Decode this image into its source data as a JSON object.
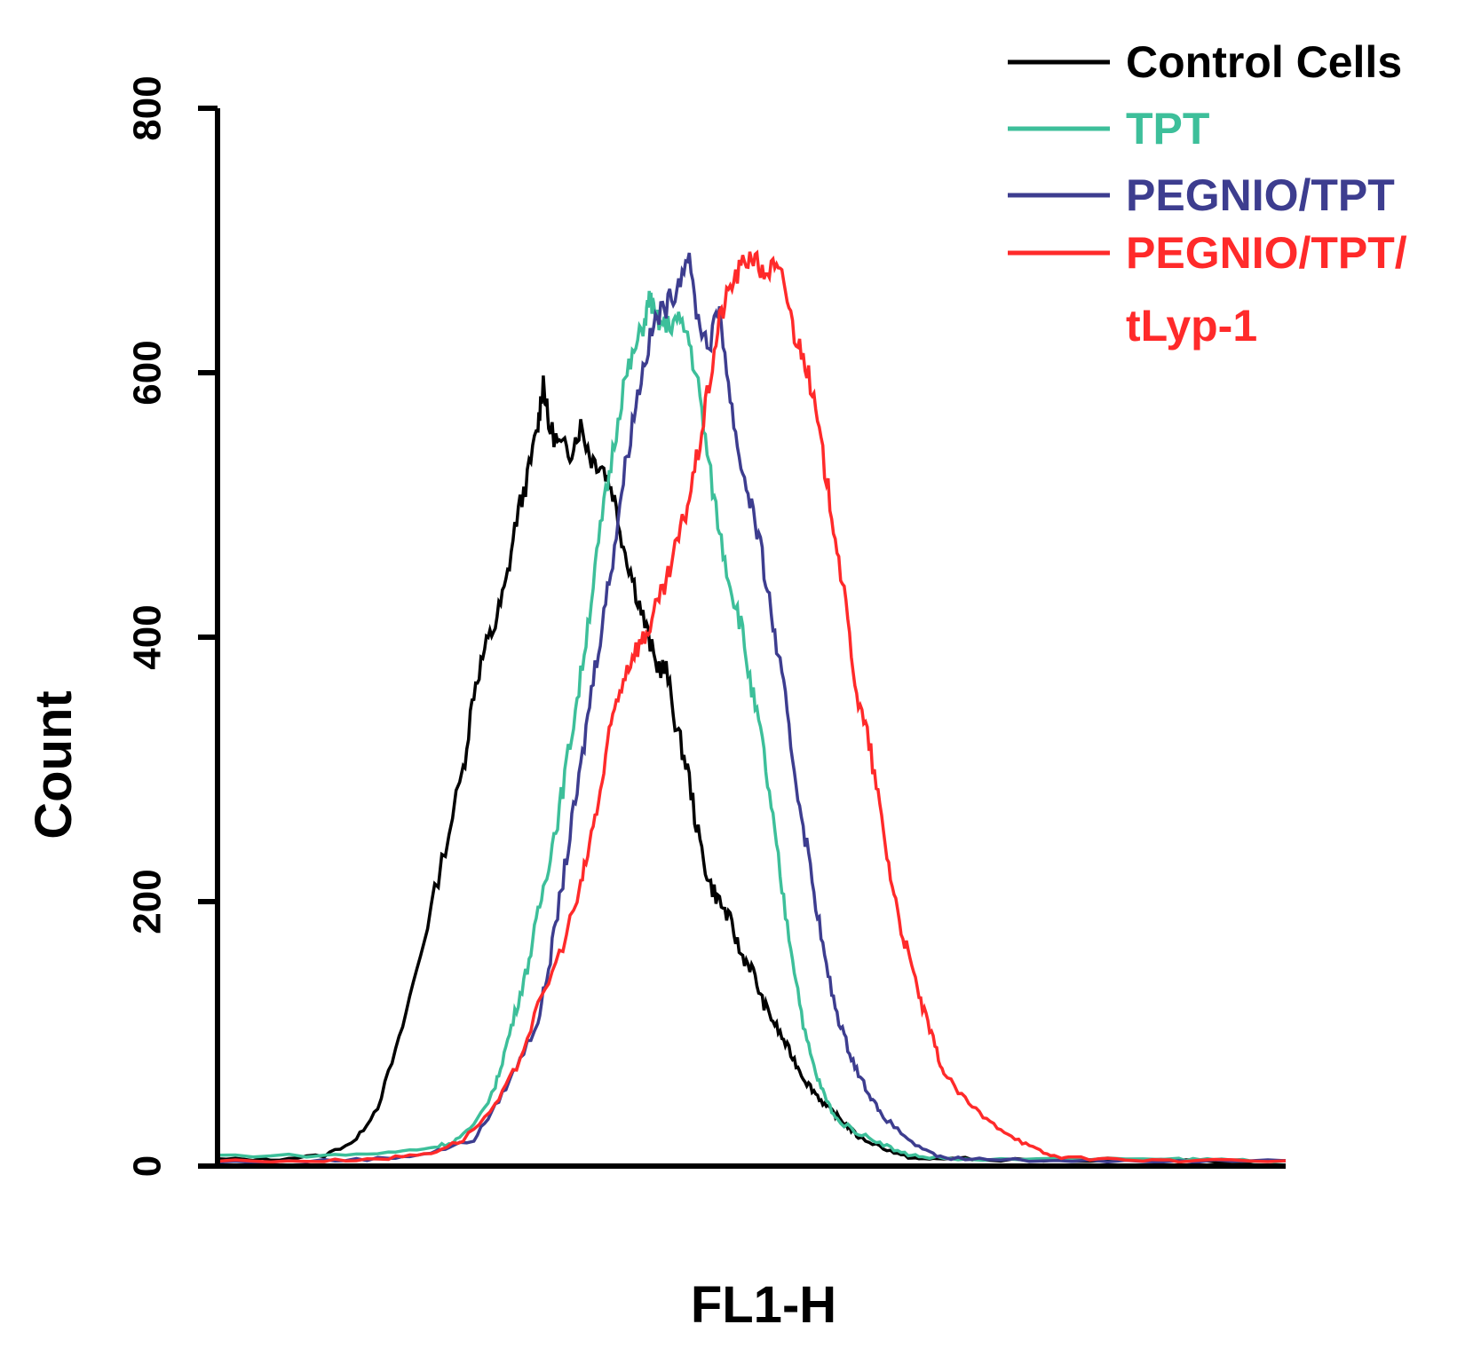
{
  "chart_data": {
    "type": "line",
    "title": "",
    "xlabel": "FL1-H",
    "ylabel": "Count",
    "xlim": [
      0,
      100
    ],
    "ylim": [
      0,
      800
    ],
    "yticks": [
      0,
      200,
      400,
      600,
      800
    ],
    "grid": false,
    "legend_position": "top-right",
    "series": [
      {
        "name": "Control Cells",
        "color": "#000000",
        "points": [
          [
            0,
            5
          ],
          [
            5,
            5
          ],
          [
            10,
            8
          ],
          [
            13,
            20
          ],
          [
            15,
            45
          ],
          [
            17,
            95
          ],
          [
            19,
            160
          ],
          [
            21,
            230
          ],
          [
            23,
            300
          ],
          [
            24,
            360
          ],
          [
            25,
            390
          ],
          [
            26,
            410
          ],
          [
            27,
            440
          ],
          [
            28,
            490
          ],
          [
            29,
            520
          ],
          [
            30,
            560
          ],
          [
            30.5,
            595
          ],
          [
            31,
            560
          ],
          [
            32,
            545
          ],
          [
            33,
            540
          ],
          [
            34,
            560
          ],
          [
            35,
            535
          ],
          [
            36,
            530
          ],
          [
            37,
            510
          ],
          [
            38,
            470
          ],
          [
            39,
            440
          ],
          [
            40,
            410
          ],
          [
            41,
            380
          ],
          [
            42,
            375
          ],
          [
            43,
            330
          ],
          [
            44,
            300
          ],
          [
            45,
            250
          ],
          [
            46,
            215
          ],
          [
            47,
            200
          ],
          [
            48,
            185
          ],
          [
            49,
            160
          ],
          [
            50,
            150
          ],
          [
            51,
            125
          ],
          [
            52,
            110
          ],
          [
            53,
            95
          ],
          [
            54,
            80
          ],
          [
            55,
            65
          ],
          [
            56,
            55
          ],
          [
            57,
            45
          ],
          [
            58,
            38
          ],
          [
            59,
            30
          ],
          [
            60,
            22
          ],
          [
            62,
            15
          ],
          [
            64,
            8
          ],
          [
            66,
            5
          ],
          [
            68,
            6
          ],
          [
            72,
            5
          ],
          [
            80,
            4
          ],
          [
            90,
            4
          ],
          [
            100,
            4
          ]
        ]
      },
      {
        "name": "TPT",
        "color": "#3dbf9a",
        "points": [
          [
            0,
            8
          ],
          [
            10,
            8
          ],
          [
            16,
            10
          ],
          [
            20,
            14
          ],
          [
            22,
            18
          ],
          [
            24,
            30
          ],
          [
            26,
            60
          ],
          [
            27,
            90
          ],
          [
            28,
            120
          ],
          [
            29,
            150
          ],
          [
            30,
            190
          ],
          [
            31,
            230
          ],
          [
            32,
            270
          ],
          [
            33,
            320
          ],
          [
            34,
            370
          ],
          [
            35,
            430
          ],
          [
            36,
            490
          ],
          [
            37,
            540
          ],
          [
            38,
            590
          ],
          [
            39,
            615
          ],
          [
            40,
            640
          ],
          [
            40.5,
            658
          ],
          [
            41,
            640
          ],
          [
            42,
            635
          ],
          [
            43,
            640
          ],
          [
            44,
            630
          ],
          [
            45,
            590
          ],
          [
            46,
            530
          ],
          [
            47,
            480
          ],
          [
            48,
            440
          ],
          [
            49,
            410
          ],
          [
            50,
            360
          ],
          [
            51,
            320
          ],
          [
            52,
            260
          ],
          [
            53,
            200
          ],
          [
            54,
            150
          ],
          [
            55,
            100
          ],
          [
            56,
            70
          ],
          [
            57,
            50
          ],
          [
            58,
            35
          ],
          [
            60,
            25
          ],
          [
            62,
            18
          ],
          [
            64,
            10
          ],
          [
            66,
            7
          ],
          [
            70,
            5
          ],
          [
            80,
            5
          ],
          [
            90,
            5
          ],
          [
            94,
            5
          ],
          [
            100,
            4
          ]
        ]
      },
      {
        "name": "PEGNIO/TPT",
        "color": "#3d3d8f",
        "points": [
          [
            0,
            3
          ],
          [
            10,
            4
          ],
          [
            16,
            6
          ],
          [
            20,
            10
          ],
          [
            24,
            20
          ],
          [
            26,
            45
          ],
          [
            28,
            75
          ],
          [
            30,
            110
          ],
          [
            31,
            150
          ],
          [
            32,
            200
          ],
          [
            33,
            250
          ],
          [
            34,
            300
          ],
          [
            35,
            360
          ],
          [
            36,
            410
          ],
          [
            37,
            460
          ],
          [
            38,
            520
          ],
          [
            39,
            570
          ],
          [
            40,
            610
          ],
          [
            41,
            640
          ],
          [
            42,
            650
          ],
          [
            43,
            665
          ],
          [
            44,
            690
          ],
          [
            45,
            640
          ],
          [
            46,
            620
          ],
          [
            47,
            650
          ],
          [
            48,
            580
          ],
          [
            49,
            530
          ],
          [
            50,
            500
          ],
          [
            51,
            460
          ],
          [
            52,
            410
          ],
          [
            53,
            360
          ],
          [
            54,
            300
          ],
          [
            55,
            250
          ],
          [
            56,
            200
          ],
          [
            57,
            150
          ],
          [
            58,
            115
          ],
          [
            59,
            90
          ],
          [
            60,
            70
          ],
          [
            61,
            55
          ],
          [
            62,
            40
          ],
          [
            64,
            25
          ],
          [
            66,
            12
          ],
          [
            68,
            6
          ],
          [
            72,
            5
          ],
          [
            80,
            4
          ],
          [
            90,
            4
          ],
          [
            100,
            4
          ]
        ]
      },
      {
        "name": "PEGNIO/TPT/tLyp-1",
        "color": "#ff2a2a",
        "points": [
          [
            0,
            4
          ],
          [
            10,
            4
          ],
          [
            16,
            6
          ],
          [
            20,
            10
          ],
          [
            23,
            20
          ],
          [
            26,
            45
          ],
          [
            28,
            75
          ],
          [
            30,
            120
          ],
          [
            32,
            160
          ],
          [
            34,
            210
          ],
          [
            35,
            250
          ],
          [
            36,
            290
          ],
          [
            37,
            340
          ],
          [
            38,
            370
          ],
          [
            39,
            390
          ],
          [
            40,
            400
          ],
          [
            41,
            420
          ],
          [
            42,
            440
          ],
          [
            43,
            470
          ],
          [
            44,
            500
          ],
          [
            45,
            540
          ],
          [
            46,
            590
          ],
          [
            47,
            640
          ],
          [
            48,
            665
          ],
          [
            49,
            680
          ],
          [
            50,
            690
          ],
          [
            51,
            675
          ],
          [
            52,
            680
          ],
          [
            53,
            670
          ],
          [
            54,
            630
          ],
          [
            55,
            610
          ],
          [
            56,
            570
          ],
          [
            57,
            520
          ],
          [
            58,
            470
          ],
          [
            59,
            410
          ],
          [
            60,
            350
          ],
          [
            61,
            320
          ],
          [
            62,
            270
          ],
          [
            63,
            220
          ],
          [
            64,
            180
          ],
          [
            65,
            150
          ],
          [
            66,
            120
          ],
          [
            67,
            95
          ],
          [
            68,
            70
          ],
          [
            70,
            50
          ],
          [
            72,
            35
          ],
          [
            74,
            25
          ],
          [
            76,
            15
          ],
          [
            78,
            8
          ],
          [
            80,
            6
          ],
          [
            85,
            5
          ],
          [
            90,
            4
          ],
          [
            100,
            4
          ]
        ]
      }
    ]
  }
}
